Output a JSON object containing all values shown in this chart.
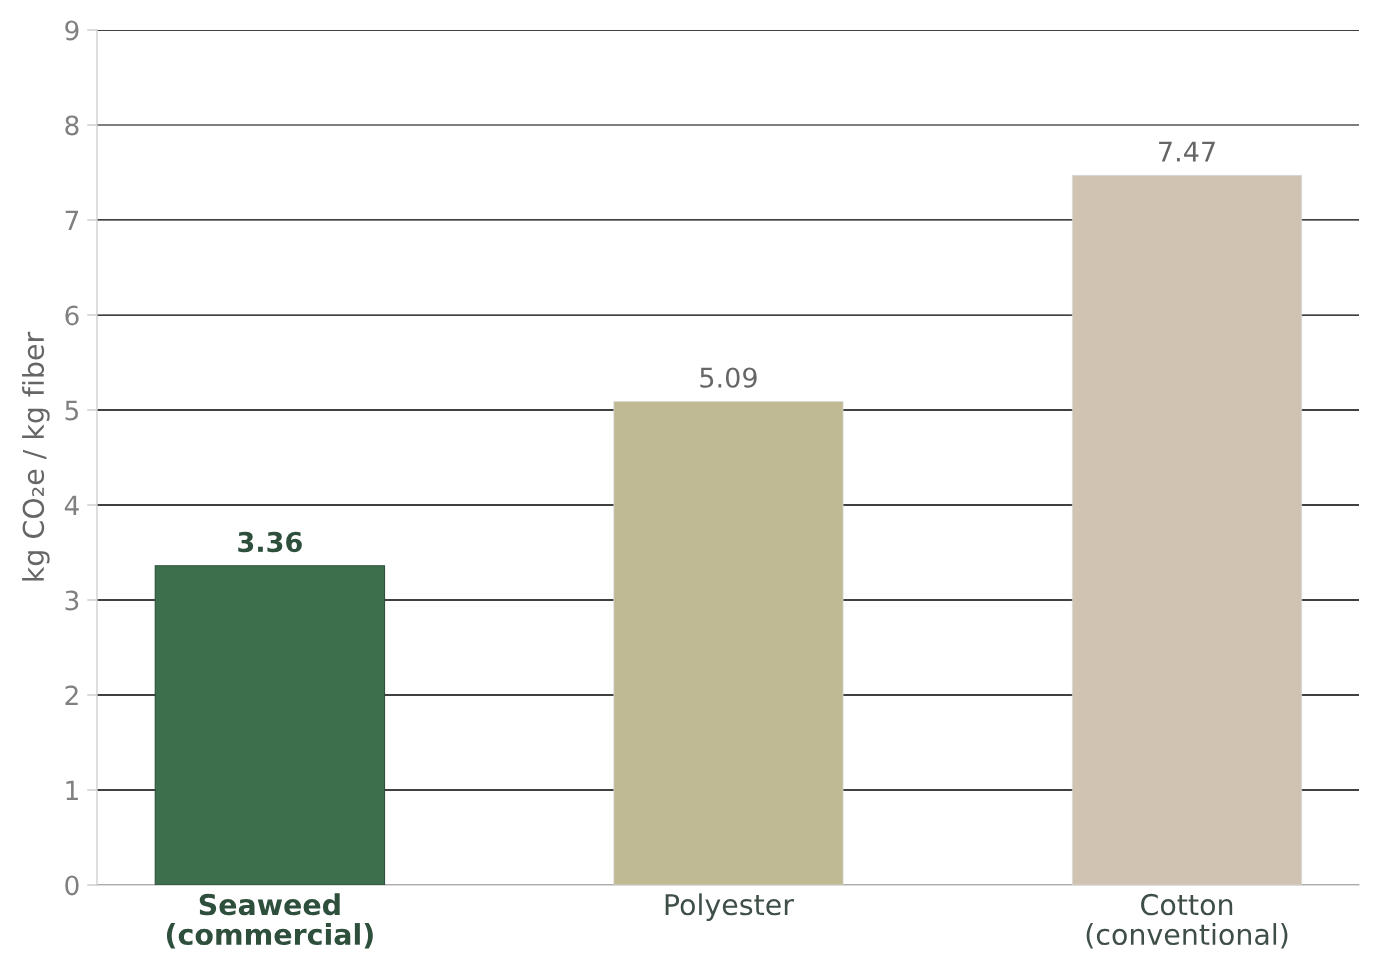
{
  "chart_data": {
    "type": "bar",
    "ylabel": "kg CO₂e / kg fiber",
    "categories": [
      "Seaweed\n(commercial)",
      "Polyester",
      "Cotton\n(conventional)"
    ],
    "values": [
      3.36,
      5.09,
      7.47
    ],
    "colors": [
      "#3d6f4d",
      "#bfba94",
      "#d1c3b2"
    ],
    "ylim": [
      0,
      9
    ],
    "yticks": [
      0,
      1,
      2,
      3,
      4,
      5,
      6,
      7,
      8,
      9
    ],
    "grid": "y",
    "data_labels": true
  }
}
